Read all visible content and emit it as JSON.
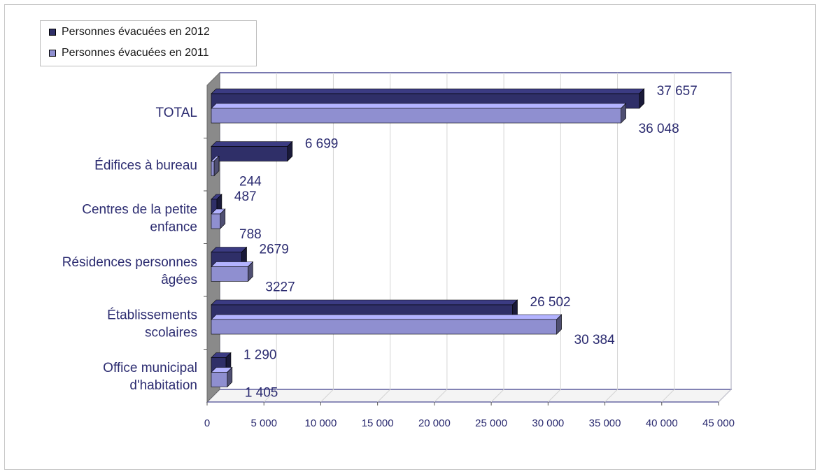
{
  "chart_data": {
    "type": "bar",
    "orientation": "horizontal",
    "style": "3d",
    "categories": [
      [
        "TOTAL"
      ],
      [
        "Édifices à bureau"
      ],
      [
        "Centres de la petite",
        "enfance"
      ],
      [
        "Résidences personnes",
        "âgées"
      ],
      [
        "Établissements",
        "scolaires"
      ],
      [
        "Office municipal",
        "d'habitation"
      ]
    ],
    "series": [
      {
        "name": "Personnes évacuées en 2012",
        "color": "#2f2f68",
        "values": [
          37657,
          6699,
          487,
          2679,
          26502,
          1290
        ],
        "labels": [
          "37 657",
          "6 699",
          "487",
          "2679",
          "26 502",
          "1 290"
        ]
      },
      {
        "name": "Personnes évacuées en 2011",
        "color": "#8f8fd0",
        "values": [
          36048,
          244,
          788,
          3227,
          30384,
          1405
        ],
        "labels": [
          "36 048",
          "244",
          "788",
          "3227",
          "30 384",
          "1 405"
        ]
      }
    ],
    "xlim": [
      0,
      45000
    ],
    "x_ticks": [
      0,
      5000,
      10000,
      15000,
      20000,
      25000,
      30000,
      35000,
      40000,
      45000
    ],
    "x_tick_labels": [
      "0",
      "5 000",
      "10 000",
      "15 000",
      "20 000",
      "25 000",
      "30 000",
      "35 000",
      "40 000",
      "45 000"
    ],
    "grid": true,
    "legend_position": "top-left",
    "title": "",
    "xlabel": "",
    "ylabel": ""
  }
}
